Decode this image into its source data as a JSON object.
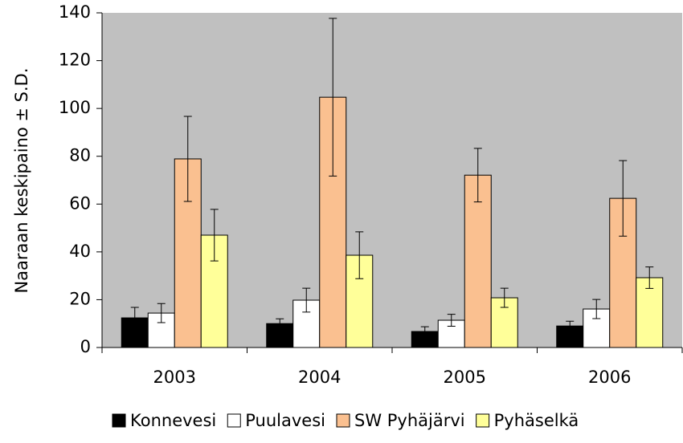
{
  "chart_data": {
    "type": "bar",
    "y_label": "Naaraan keskipaino ± S.D.",
    "categories": [
      "2003",
      "2004",
      "2005",
      "2006"
    ],
    "series": [
      {
        "name": "Konnevesi",
        "color": "#000000",
        "values": [
          12.4,
          10,
          6.7,
          9
        ],
        "errors": [
          4.4,
          2,
          2,
          2
        ]
      },
      {
        "name": "Puulavesi",
        "color": "#ffffff",
        "values": [
          14.4,
          19.8,
          11.4,
          16.1
        ],
        "errors": [
          4,
          5,
          2.5,
          4
        ]
      },
      {
        "name": "SW Pyhäjärvi",
        "color": "#fac090",
        "values": [
          78.9,
          104.7,
          72.1,
          62.4
        ],
        "errors": [
          17.8,
          33,
          11.2,
          15.8
        ]
      },
      {
        "name": "Pyhäselkä",
        "color": "#ffff99",
        "values": [
          47,
          38.6,
          20.8,
          29.2
        ],
        "errors": [
          10.8,
          9.8,
          4,
          4.5
        ]
      }
    ],
    "ylim": [
      0,
      140
    ],
    "yticks": [
      0,
      20,
      40,
      60,
      80,
      100,
      120,
      140
    ],
    "background": "#c0c0c0"
  }
}
